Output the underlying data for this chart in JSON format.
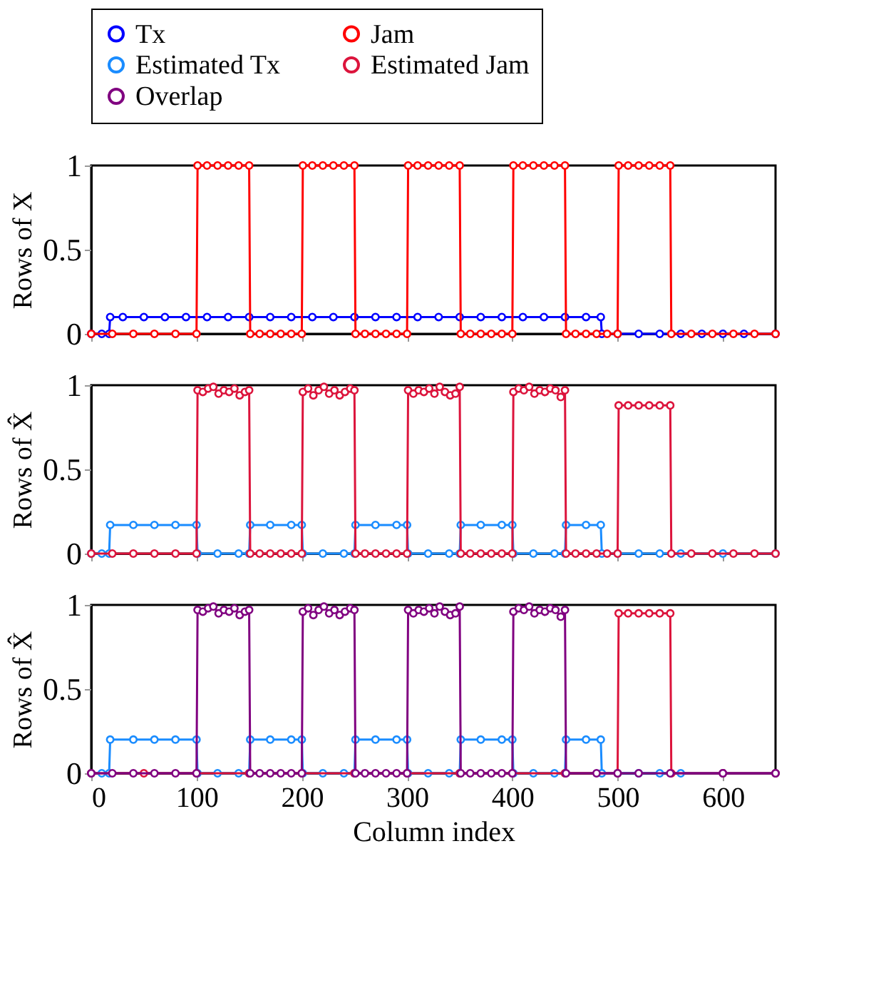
{
  "chart_data": [
    {
      "type": "line",
      "ylabel": "Rows of X",
      "xlim": [
        0,
        650
      ],
      "xticks": [
        0,
        100,
        200,
        300,
        400,
        500,
        600
      ],
      "ylim": [
        0,
        1
      ],
      "yticks": [
        0,
        0.5,
        1
      ],
      "tick_labels": "y",
      "legend": "top",
      "marker": "circle",
      "line_style": "solid",
      "grid": false,
      "series": [
        {
          "name": "Tx",
          "color": "#0000ff",
          "x": [
            0,
            10,
            17,
            18,
            30,
            50,
            70,
            90,
            110,
            130,
            150,
            170,
            190,
            210,
            230,
            250,
            270,
            290,
            310,
            330,
            350,
            370,
            390,
            410,
            430,
            450,
            470,
            484,
            485,
            500,
            520,
            540,
            560,
            580,
            600,
            620,
            650
          ],
          "values": [
            0,
            0,
            0,
            0.1,
            0.1,
            0.1,
            0.1,
            0.1,
            0.1,
            0.1,
            0.1,
            0.1,
            0.1,
            0.1,
            0.1,
            0.1,
            0.1,
            0.1,
            0.1,
            0.1,
            0.1,
            0.1,
            0.1,
            0.1,
            0.1,
            0.1,
            0.1,
            0.1,
            0,
            0,
            0,
            0,
            0,
            0,
            0,
            0,
            0
          ]
        },
        {
          "name": "Jam",
          "color": "#ff0000",
          "x": [
            0,
            20,
            40,
            60,
            80,
            100,
            101,
            110,
            120,
            130,
            140,
            150,
            151,
            160,
            170,
            180,
            190,
            200,
            201,
            210,
            220,
            230,
            240,
            250,
            251,
            260,
            270,
            280,
            290,
            300,
            301,
            310,
            320,
            330,
            340,
            350,
            351,
            360,
            370,
            380,
            390,
            400,
            401,
            410,
            420,
            430,
            440,
            450,
            451,
            460,
            470,
            480,
            490,
            500,
            501,
            510,
            520,
            530,
            540,
            550,
            551,
            570,
            590,
            610,
            630,
            650
          ],
          "values": [
            0,
            0,
            0,
            0,
            0,
            0,
            1,
            1,
            1,
            1,
            1,
            1,
            0,
            0,
            0,
            0,
            0,
            0,
            1,
            1,
            1,
            1,
            1,
            1,
            0,
            0,
            0,
            0,
            0,
            0,
            1,
            1,
            1,
            1,
            1,
            1,
            0,
            0,
            0,
            0,
            0,
            0,
            1,
            1,
            1,
            1,
            1,
            1,
            0,
            0,
            0,
            0,
            0,
            0,
            1,
            1,
            1,
            1,
            1,
            1,
            0,
            0,
            0,
            0,
            0,
            0
          ]
        }
      ]
    },
    {
      "type": "line",
      "ylabel": "Rows of X̂",
      "xlim": [
        0,
        650
      ],
      "xticks": [
        0,
        100,
        200,
        300,
        400,
        500,
        600
      ],
      "ylim": [
        0,
        1
      ],
      "yticks": [
        0,
        0.5,
        1
      ],
      "tick_labels": "y",
      "legend": "top",
      "marker": "circle",
      "line_style": "solid",
      "grid": false,
      "series": [
        {
          "name": "Estimated Tx",
          "color": "#1a8cff",
          "x": [
            0,
            10,
            17,
            18,
            40,
            60,
            80,
            100,
            101,
            120,
            140,
            150,
            151,
            170,
            190,
            200,
            201,
            220,
            240,
            250,
            251,
            270,
            290,
            300,
            301,
            320,
            340,
            350,
            351,
            370,
            390,
            400,
            401,
            420,
            440,
            450,
            451,
            470,
            484,
            485,
            500,
            520,
            540,
            560,
            600,
            650
          ],
          "values": [
            0,
            0,
            0,
            0.17,
            0.17,
            0.17,
            0.17,
            0.17,
            0,
            0,
            0,
            0,
            0.17,
            0.17,
            0.17,
            0.17,
            0,
            0,
            0,
            0,
            0.17,
            0.17,
            0.17,
            0.17,
            0,
            0,
            0,
            0,
            0.17,
            0.17,
            0.17,
            0.17,
            0,
            0,
            0,
            0,
            0.17,
            0.17,
            0.17,
            0,
            0,
            0,
            0,
            0,
            0,
            0
          ]
        },
        {
          "name": "Estimated Jam",
          "color": "#dc143c",
          "x": [
            0,
            20,
            40,
            60,
            80,
            100,
            101,
            106,
            111,
            116,
            121,
            126,
            131,
            136,
            141,
            146,
            150,
            151,
            160,
            170,
            180,
            190,
            200,
            201,
            206,
            211,
            216,
            221,
            226,
            231,
            236,
            241,
            246,
            250,
            251,
            260,
            270,
            280,
            290,
            300,
            301,
            306,
            311,
            316,
            321,
            326,
            331,
            336,
            341,
            346,
            350,
            351,
            360,
            370,
            380,
            390,
            400,
            401,
            406,
            411,
            416,
            421,
            426,
            431,
            436,
            441,
            446,
            450,
            451,
            460,
            470,
            480,
            490,
            500,
            501,
            510,
            520,
            530,
            540,
            550,
            551,
            570,
            590,
            610,
            630,
            650
          ],
          "values": [
            0,
            0,
            0,
            0,
            0,
            0,
            0.97,
            0.96,
            0.98,
            0.99,
            0.95,
            0.97,
            0.96,
            0.98,
            0.94,
            0.96,
            0.97,
            0,
            0,
            0,
            0,
            0,
            0,
            0.96,
            0.98,
            0.94,
            0.97,
            0.99,
            0.95,
            0.97,
            0.94,
            0.96,
            0.98,
            0.97,
            0,
            0,
            0,
            0,
            0,
            0,
            0.97,
            0.95,
            0.97,
            0.96,
            0.98,
            0.95,
            0.99,
            0.96,
            0.94,
            0.95,
            0.99,
            0,
            0,
            0,
            0,
            0,
            0,
            0.96,
            0.98,
            0.97,
            0.99,
            0.95,
            0.97,
            0.96,
            0.98,
            0.97,
            0.93,
            0.97,
            0,
            0,
            0,
            0,
            0,
            0,
            0.88,
            0.88,
            0.88,
            0.88,
            0.88,
            0.88,
            0,
            0,
            0,
            0,
            0,
            0
          ]
        }
      ]
    },
    {
      "type": "line",
      "ylabel": "Rows of X̂",
      "xlabel": "Column index",
      "xlim": [
        0,
        650
      ],
      "xticks": [
        0,
        100,
        200,
        300,
        400,
        500,
        600
      ],
      "ylim": [
        0,
        1
      ],
      "yticks": [
        0,
        0.5,
        1
      ],
      "legend": "top",
      "marker": "circle",
      "line_style": "solid",
      "grid": false,
      "series": [
        {
          "name": "Estimated Tx",
          "color": "#1a8cff",
          "x": [
            0,
            10,
            17,
            18,
            40,
            60,
            80,
            100,
            101,
            120,
            140,
            150,
            151,
            170,
            190,
            200,
            201,
            220,
            240,
            250,
            251,
            270,
            290,
            300,
            301,
            320,
            340,
            350,
            351,
            370,
            390,
            400,
            401,
            420,
            440,
            450,
            451,
            470,
            484,
            485,
            500,
            520,
            540,
            560,
            600,
            650
          ],
          "values": [
            0,
            0,
            0,
            0.2,
            0.2,
            0.2,
            0.2,
            0.2,
            0,
            0,
            0,
            0,
            0.2,
            0.2,
            0.2,
            0.2,
            0,
            0,
            0,
            0,
            0.2,
            0.2,
            0.2,
            0.2,
            0,
            0,
            0,
            0,
            0.2,
            0.2,
            0.2,
            0.2,
            0,
            0,
            0,
            0,
            0.2,
            0.2,
            0.2,
            0,
            0,
            0,
            0,
            0,
            0,
            0
          ]
        },
        {
          "name": "Estimated Jam",
          "color": "#dc143c",
          "x": [
            0,
            50,
            100,
            150,
            200,
            250,
            300,
            350,
            400,
            450,
            500,
            501,
            510,
            520,
            530,
            540,
            550,
            551,
            600,
            650
          ],
          "values": [
            0,
            0,
            0,
            0,
            0,
            0,
            0,
            0,
            0,
            0,
            0,
            0.95,
            0.95,
            0.95,
            0.95,
            0.95,
            0.95,
            0,
            0,
            0
          ]
        },
        {
          "name": "Overlap",
          "color": "#800080",
          "x": [
            0,
            20,
            40,
            60,
            80,
            100,
            101,
            106,
            111,
            116,
            121,
            126,
            131,
            136,
            141,
            146,
            150,
            151,
            160,
            170,
            180,
            190,
            200,
            201,
            206,
            211,
            216,
            221,
            226,
            231,
            236,
            241,
            246,
            250,
            251,
            260,
            270,
            280,
            290,
            300,
            301,
            306,
            311,
            316,
            321,
            326,
            331,
            336,
            341,
            346,
            350,
            351,
            360,
            370,
            380,
            390,
            400,
            401,
            406,
            411,
            416,
            421,
            426,
            431,
            436,
            441,
            446,
            450,
            451,
            480,
            500,
            520,
            550,
            600,
            650
          ],
          "values": [
            0,
            0,
            0,
            0,
            0,
            0,
            0.97,
            0.96,
            0.98,
            0.99,
            0.95,
            0.97,
            0.96,
            0.98,
            0.94,
            0.96,
            0.97,
            0,
            0,
            0,
            0,
            0,
            0,
            0.96,
            0.98,
            0.94,
            0.97,
            0.99,
            0.95,
            0.97,
            0.94,
            0.96,
            0.98,
            0.97,
            0,
            0,
            0,
            0,
            0,
            0,
            0.97,
            0.95,
            0.97,
            0.96,
            0.98,
            0.95,
            0.99,
            0.96,
            0.94,
            0.95,
            0.99,
            0,
            0,
            0,
            0,
            0,
            0,
            0.96,
            0.98,
            0.97,
            0.99,
            0.95,
            0.97,
            0.96,
            0.98,
            0.97,
            0.93,
            0.97,
            0,
            0,
            0,
            0,
            0,
            0,
            0
          ]
        }
      ]
    }
  ]
}
